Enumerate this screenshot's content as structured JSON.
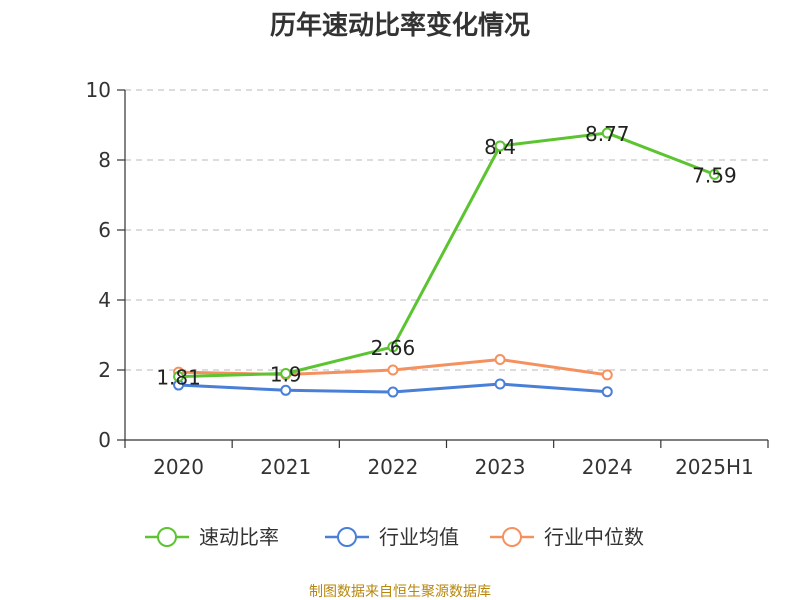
{
  "chart_data": {
    "type": "line",
    "title": "历年速动比率变化情况",
    "categories": [
      "2020",
      "2021",
      "2022",
      "2023",
      "2024",
      "2025H1"
    ],
    "ylim": [
      0,
      10
    ],
    "yticks": [
      0,
      2,
      4,
      6,
      8,
      10
    ],
    "grid": "horizontal-dashed",
    "legend_position": "bottom",
    "series": [
      {
        "name": "速动比率",
        "color": "#5cc431",
        "values": [
          1.81,
          1.9,
          2.66,
          8.4,
          8.77,
          7.59
        ],
        "show_labels": true
      },
      {
        "name": "行业均值",
        "color": "#4a7fd8",
        "values": [
          1.57,
          1.42,
          1.37,
          1.6,
          1.38,
          null
        ],
        "show_labels": false
      },
      {
        "name": "行业中位数",
        "color": "#f5915f",
        "values": [
          1.94,
          1.87,
          2.0,
          2.3,
          1.86,
          null
        ],
        "show_labels": false
      }
    ],
    "source": "制图数据来自恒生聚源数据库"
  }
}
